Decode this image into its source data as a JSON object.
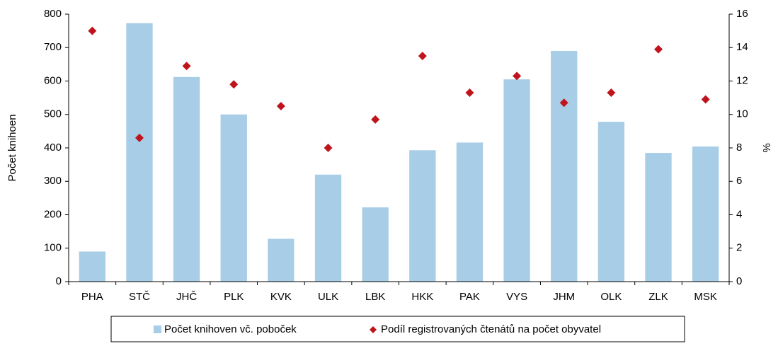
{
  "chart_data": {
    "type": "bar_scatter",
    "categories": [
      "PHA",
      "STČ",
      "JHČ",
      "PLK",
      "KVK",
      "ULK",
      "LBK",
      "HKK",
      "PAK",
      "VYS",
      "JHM",
      "OLK",
      "ZLK",
      "MSK"
    ],
    "series": [
      {
        "name": "Počet knihoven vč. poboček",
        "color": "#a8cde6",
        "type": "bar",
        "values": [
          90,
          773,
          612,
          500,
          128,
          320,
          222,
          393,
          416,
          605,
          690,
          478,
          385,
          404
        ]
      },
      {
        "name": "Podíl registrovaných čtenátů na počet obyvatel",
        "color": "#c0141c",
        "type": "scatter",
        "axis": "y2",
        "values": [
          15.0,
          8.6,
          12.9,
          11.8,
          10.5,
          8.0,
          9.7,
          13.5,
          11.3,
          12.3,
          10.7,
          11.3,
          13.9,
          10.9
        ]
      }
    ],
    "ylabel": "Počet knihoen",
    "y2label": "%",
    "ylim": [
      0,
      800
    ],
    "yticks": [
      0,
      100,
      200,
      300,
      400,
      500,
      600,
      700,
      800
    ],
    "y2lim": [
      0,
      16
    ],
    "y2ticks": [
      0,
      2,
      4,
      6,
      8,
      10,
      12,
      14,
      16
    ],
    "legend": "bottom"
  }
}
